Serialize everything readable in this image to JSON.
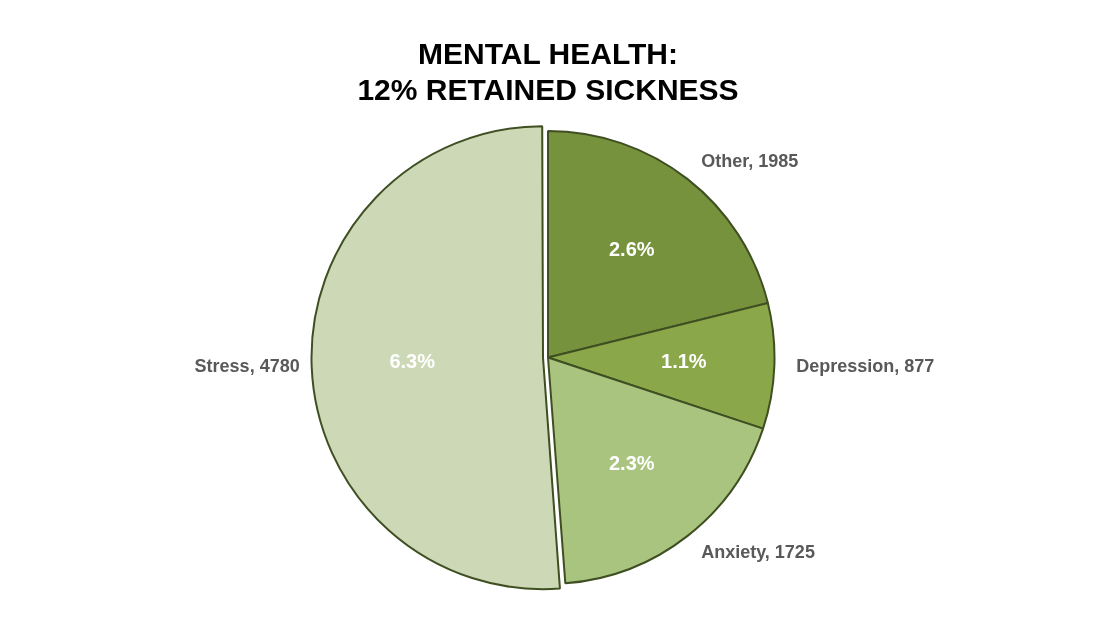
{
  "chart_data": {
    "type": "pie",
    "title": "MENTAL HEALTH:\n12% RETAINED SICKNESS",
    "categories": [
      "Other, 1985",
      "Depression, 877",
      "Anxiety, 1725",
      "Stress, 4780"
    ],
    "values": [
      2.6,
      1.1,
      2.3,
      6.3
    ],
    "value_labels": [
      "2.6%",
      "1.1%",
      "2.3%",
      "6.3%"
    ],
    "colors": [
      "#77923c",
      "#8aa84a",
      "#a9c47f",
      "#cdd9b6"
    ]
  }
}
